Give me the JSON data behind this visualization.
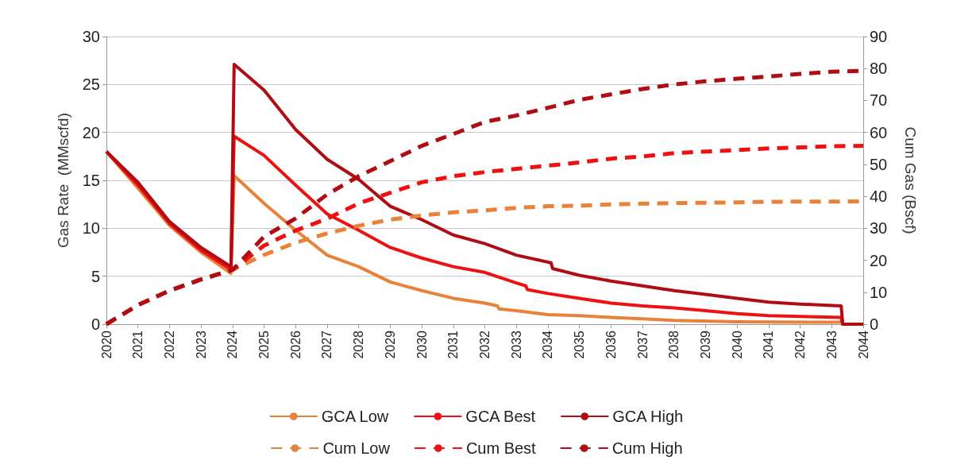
{
  "chart_data": {
    "type": "line",
    "xlabel": null,
    "ylabel": "Gas Rate  (MMscfd)",
    "y2label": "Cum Gas (Bscf)",
    "xlim": [
      2020,
      2044
    ],
    "xticks": [
      2020,
      2021,
      2022,
      2023,
      2024,
      2025,
      2026,
      2027,
      2028,
      2029,
      2030,
      2031,
      2032,
      2033,
      2034,
      2035,
      2036,
      2037,
      2038,
      2039,
      2040,
      2041,
      2042,
      2043,
      2044
    ],
    "ylim": [
      0,
      30
    ],
    "yticks": [
      0,
      5,
      10,
      15,
      20,
      25,
      30
    ],
    "y2lim": [
      0,
      90
    ],
    "y2ticks": [
      0,
      10,
      20,
      30,
      40,
      50,
      60,
      70,
      80,
      90
    ],
    "grid": "y",
    "legend": "bottom",
    "marker": "none",
    "series": [
      {
        "name": "GCA Low",
        "color": "#e8823a",
        "line_style": "solid",
        "x": [
          2020,
          2021,
          2022,
          2023,
          2023.95,
          2024.05,
          2025,
          2026,
          2027,
          2028,
          2029,
          2030,
          2031,
          2032,
          2032.4,
          2032.45,
          2033,
          2034,
          2035,
          2036,
          2037,
          2038,
          2040,
          2043.3,
          2043.35,
          2044
        ],
        "values": [
          18,
          14.2,
          10.3,
          7.5,
          5.3,
          15.5,
          12.6,
          9.8,
          7.2,
          6,
          4.4,
          3.5,
          2.7,
          2.2,
          1.9,
          1.6,
          1.4,
          1,
          0.9,
          0.7,
          0.55,
          0.4,
          0.25,
          0.2,
          0,
          0
        ]
      },
      {
        "name": "GCA Best",
        "color": "#ee1111",
        "line_style": "solid",
        "x": [
          2020,
          2021,
          2022,
          2023,
          2023.95,
          2024.05,
          2025,
          2026,
          2027,
          2028,
          2029,
          2030,
          2031,
          2032,
          2033,
          2033.3,
          2033.35,
          2034,
          2035,
          2036,
          2037,
          2038,
          2039,
          2040,
          2041,
          2042,
          2043.3,
          2043.35,
          2044
        ],
        "values": [
          18,
          14.5,
          10.5,
          7.7,
          5.7,
          19.6,
          17.6,
          14.5,
          11.5,
          9.8,
          8,
          6.9,
          6,
          5.4,
          4.3,
          4,
          3.6,
          3.2,
          2.7,
          2.2,
          1.9,
          1.7,
          1.4,
          1.1,
          0.9,
          0.8,
          0.7,
          0,
          0
        ]
      },
      {
        "name": "GCA High",
        "color": "#b00c14",
        "line_style": "solid",
        "x": [
          2020,
          2021,
          2022,
          2023,
          2023.95,
          2024.05,
          2025,
          2026,
          2027,
          2028,
          2029,
          2030,
          2031,
          2032,
          2033,
          2034.1,
          2034.15,
          2035,
          2036,
          2037,
          2038,
          2039,
          2040,
          2041,
          2042,
          2043.3,
          2043.35,
          2044
        ],
        "values": [
          18,
          14.8,
          10.7,
          8,
          6,
          27.1,
          24.4,
          20.3,
          17.2,
          15.1,
          12.3,
          10.9,
          9.3,
          8.4,
          7.2,
          6.4,
          5.8,
          5.1,
          4.5,
          4,
          3.5,
          3.1,
          2.7,
          2.3,
          2.1,
          1.9,
          0,
          0
        ]
      },
      {
        "name": "Cum Low",
        "color": "#e8823a",
        "line_style": "dashed",
        "axis": "y2",
        "x": [
          2020,
          2021,
          2022,
          2023,
          2024,
          2025,
          2026,
          2027,
          2028,
          2029,
          2030,
          2031,
          2032,
          2033,
          2034,
          2035,
          2036,
          2037,
          2038,
          2040,
          2041,
          2044
        ],
        "values": [
          0,
          6,
          10.5,
          14,
          17,
          21.7,
          25.5,
          28.4,
          30.8,
          32.7,
          34,
          35,
          35.6,
          36.4,
          36.9,
          37.1,
          37.5,
          37.7,
          37.9,
          38.1,
          38.3,
          38.4
        ]
      },
      {
        "name": "Cum Best",
        "color": "#ee1111",
        "line_style": "dashed",
        "axis": "y2",
        "x": [
          2020,
          2021,
          2022,
          2023,
          2024,
          2025,
          2026,
          2027,
          2028,
          2029,
          2030,
          2031,
          2032,
          2033,
          2034,
          2035,
          2036,
          2037,
          2038,
          2039,
          2040,
          2041,
          2042,
          2043,
          2044
        ],
        "values": [
          0,
          6,
          10.5,
          14,
          17,
          24.6,
          29.3,
          33,
          37.8,
          41.1,
          44.4,
          46.3,
          47.6,
          48.6,
          49.6,
          50.6,
          51.8,
          52.5,
          53.5,
          54,
          54.5,
          55,
          55.3,
          55.7,
          55.8
        ]
      },
      {
        "name": "Cum High",
        "color": "#b00c14",
        "line_style": "dashed",
        "axis": "y2",
        "x": [
          2020,
          2021,
          2022,
          2023,
          2024,
          2025,
          2026,
          2027,
          2028,
          2029,
          2030,
          2031,
          2032,
          2033,
          2034,
          2035,
          2036,
          2037,
          2038,
          2039,
          2040,
          2041,
          2042,
          2043,
          2044
        ],
        "values": [
          0,
          6,
          10.5,
          14,
          17,
          27.4,
          33.1,
          40.6,
          46.3,
          51,
          55.8,
          59.5,
          63.3,
          65.3,
          67.7,
          70.2,
          71.9,
          73.6,
          75,
          76,
          76.8,
          77.5,
          78.3,
          79,
          79.3
        ]
      }
    ]
  }
}
